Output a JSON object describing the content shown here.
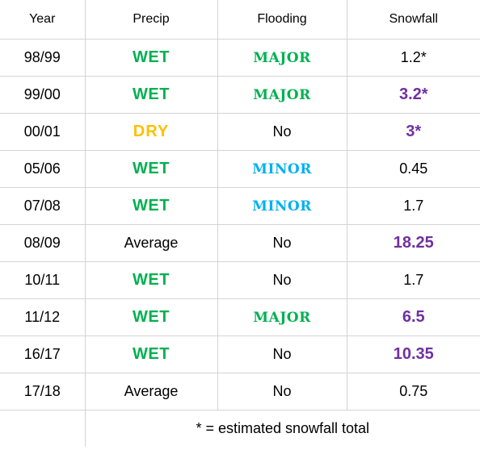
{
  "table": {
    "headers": {
      "year": "Year",
      "precip": "Precip",
      "flooding": "Flooding",
      "snowfall": "Snowfall"
    },
    "rows": [
      {
        "year": "98/99",
        "precip": "WET",
        "precip_style": "wet",
        "flooding": "MAJOR",
        "flooding_style": "major",
        "snowfall": "1.2*",
        "snowfall_style": "normal"
      },
      {
        "year": "99/00",
        "precip": "WET",
        "precip_style": "wet",
        "flooding": "MAJOR",
        "flooding_style": "major",
        "snowfall": "3.2*",
        "snowfall_style": "purple"
      },
      {
        "year": "00/01",
        "precip": "DRY",
        "precip_style": "dry",
        "flooding": "No",
        "flooding_style": "no",
        "snowfall": "3*",
        "snowfall_style": "purple"
      },
      {
        "year": "05/06",
        "precip": "WET",
        "precip_style": "wet",
        "flooding": "MINOR",
        "flooding_style": "minor",
        "snowfall": "0.45",
        "snowfall_style": "normal"
      },
      {
        "year": "07/08",
        "precip": "WET",
        "precip_style": "wet",
        "flooding": "MINOR",
        "flooding_style": "minor",
        "snowfall": "1.7",
        "snowfall_style": "normal"
      },
      {
        "year": "08/09",
        "precip": "Average",
        "precip_style": "avg",
        "flooding": "No",
        "flooding_style": "no",
        "snowfall": "18.25",
        "snowfall_style": "purple"
      },
      {
        "year": "10/11",
        "precip": "WET",
        "precip_style": "wet",
        "flooding": "No",
        "flooding_style": "no",
        "snowfall": "1.7",
        "snowfall_style": "normal"
      },
      {
        "year": "11/12",
        "precip": "WET",
        "precip_style": "wet",
        "flooding": "MAJOR",
        "flooding_style": "major",
        "snowfall": "6.5",
        "snowfall_style": "purple"
      },
      {
        "year": "16/17",
        "precip": "WET",
        "precip_style": "wet",
        "flooding": "No",
        "flooding_style": "no",
        "snowfall": "10.35",
        "snowfall_style": "purple"
      },
      {
        "year": "17/18",
        "precip": "Average",
        "precip_style": "avg",
        "flooding": "No",
        "flooding_style": "no",
        "snowfall": "0.75",
        "snowfall_style": "normal"
      }
    ],
    "footnote": "* = estimated snowfall total"
  },
  "colors": {
    "wet": "#00b050",
    "dry": "#ffc000",
    "major": "#00b050",
    "minor": "#00b0f0",
    "snowfall_highlight": "#7030a0",
    "gridline": "#d4d4d4"
  }
}
